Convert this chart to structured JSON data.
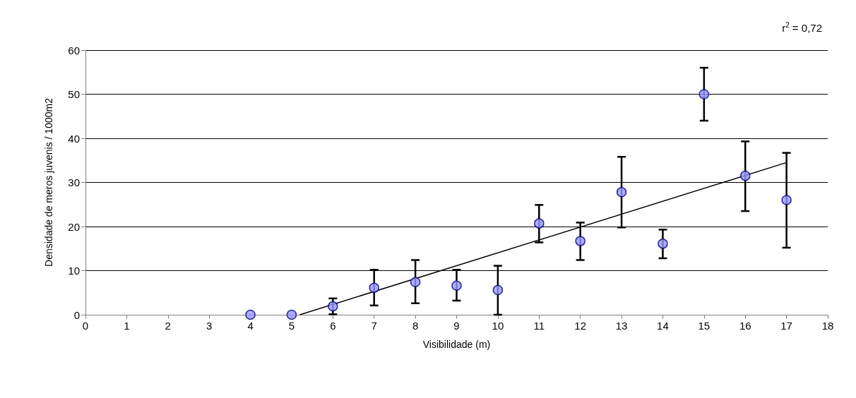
{
  "chart_data": {
    "type": "scatter",
    "xlabel": "Visibilidade (m)",
    "ylabel": "Densidade de meros juvenis / 1000m2",
    "annotations": [
      "r$^{2}$ = 0,72"
    ],
    "x": [
      4,
      5,
      6,
      7,
      8,
      9,
      10,
      11,
      12,
      13,
      14,
      15,
      16,
      17
    ],
    "series": [
      {
        "color": "#9999ff",
        "values": [
          0,
          0,
          1.9,
          6.1,
          7.4,
          6.6,
          5.6,
          20.7,
          16.7,
          27.8,
          16.1,
          50,
          31.5,
          26
        ],
        "errors": [
          null,
          null,
          [
            0.1,
            3.7
          ],
          [
            2.1,
            10.2
          ],
          [
            2.6,
            12.4
          ],
          [
            3.2,
            10.2
          ],
          [
            0,
            11.1
          ],
          [
            16.4,
            24.9
          ],
          [
            12.4,
            20.9
          ],
          [
            19.8,
            35.8
          ],
          [
            12.8,
            19.3
          ],
          [
            44,
            56
          ],
          [
            23.5,
            39.3
          ],
          [
            15.2,
            36.7
          ]
        ]
      },
      {
        "type": "line",
        "color": "#000000",
        "x": [
          5.2,
          17
        ],
        "values": [
          0,
          34.5
        ],
        "marker": "none"
      }
    ],
    "xlim": [
      0,
      18
    ],
    "xticks": [
      0,
      1,
      2,
      3,
      4,
      5,
      6,
      7,
      8,
      9,
      10,
      11,
      12,
      13,
      14,
      15,
      16,
      17,
      18
    ],
    "ylim": [
      0,
      60
    ],
    "yticks": [
      0,
      10,
      20,
      30,
      40,
      50,
      60
    ],
    "grid": "y",
    "marker": "circle"
  }
}
